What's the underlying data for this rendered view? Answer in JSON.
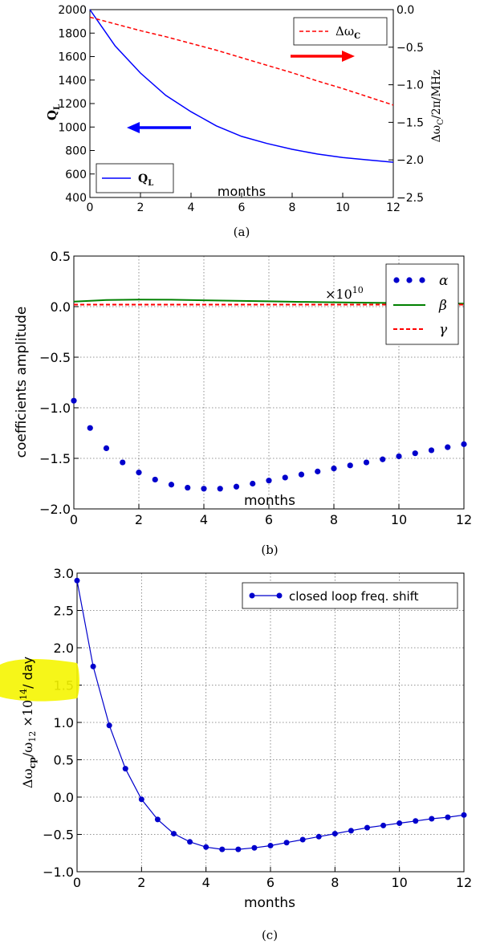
{
  "chart_data": [
    {
      "panel": "(a)",
      "type": "line",
      "xlabel": "months",
      "ylabel_left": "Q_L",
      "ylabel_right": "Δω_C/2π/MHz",
      "x_ticks": [
        "0",
        "2",
        "4",
        "6",
        "8",
        "10",
        "12"
      ],
      "y_ticks_left": [
        "2000",
        "1800",
        "1600",
        "1400",
        "1200",
        "1000",
        "800",
        "600",
        "400"
      ],
      "y_ticks_right": [
        "0.0",
        "−0.5",
        "−1.0",
        "−1.5",
        "−2.0",
        "−2.5"
      ],
      "xlim": [
        0,
        12
      ],
      "ylim_left": [
        400,
        2000
      ],
      "ylim_right": [
        -2.5,
        0.0
      ],
      "grid": false,
      "series": [
        {
          "name": "Q_L",
          "axis": "left",
          "color": "#0000ff",
          "style": "solid",
          "x": [
            0,
            1,
            2,
            3,
            4,
            5,
            6,
            7,
            8,
            9,
            10,
            11,
            12
          ],
          "y": [
            2000,
            1690,
            1460,
            1270,
            1130,
            1010,
            920,
            860,
            810,
            770,
            740,
            720,
            700
          ]
        },
        {
          "name": "Δω_C",
          "axis": "right",
          "color": "#ff0000",
          "style": "dashed",
          "x": [
            0,
            1,
            2,
            3,
            4,
            5,
            6,
            7,
            8,
            9,
            10,
            11,
            12
          ],
          "y": [
            -0.1,
            -0.19,
            -0.28,
            -0.36,
            -0.45,
            -0.54,
            -0.64,
            -0.74,
            -0.84,
            -0.95,
            -1.05,
            -1.16,
            -1.27
          ]
        }
      ],
      "legend_left": "bottom-left",
      "legend_right": "top-right",
      "caption": "(a)"
    },
    {
      "panel": "(b)",
      "type": "line",
      "xlabel": "months",
      "ylabel": "coefficients amplitude",
      "y_multiplier": "×10^10",
      "x_ticks": [
        "0",
        "2",
        "4",
        "6",
        "8",
        "10",
        "12"
      ],
      "y_ticks": [
        "0.5",
        "0.0",
        "−0.5",
        "−1.0",
        "−1.5",
        "−2.0"
      ],
      "xlim": [
        0,
        12
      ],
      "ylim": [
        -2.0,
        0.5
      ],
      "grid": true,
      "series": [
        {
          "name": "α",
          "color": "#0000cc",
          "style": "markers",
          "x": [
            0,
            0.5,
            1,
            1.5,
            2,
            2.5,
            3,
            3.5,
            4,
            4.5,
            5,
            5.5,
            6,
            6.5,
            7,
            7.5,
            8,
            8.5,
            9,
            9.5,
            10,
            10.5,
            11,
            11.5,
            12
          ],
          "y": [
            -0.93,
            -1.2,
            -1.4,
            -1.54,
            -1.64,
            -1.71,
            -1.76,
            -1.79,
            -1.8,
            -1.8,
            -1.78,
            -1.75,
            -1.72,
            -1.69,
            -1.66,
            -1.63,
            -1.6,
            -1.57,
            -1.54,
            -1.51,
            -1.48,
            -1.45,
            -1.42,
            -1.39,
            -1.36
          ]
        },
        {
          "name": "β",
          "color": "#008000",
          "style": "solid",
          "x": [
            0,
            1,
            2,
            3,
            4,
            5,
            6,
            7,
            8,
            9,
            10,
            11,
            12
          ],
          "y": [
            0.05,
            0.065,
            0.07,
            0.068,
            0.063,
            0.058,
            0.052,
            0.047,
            0.043,
            0.039,
            0.036,
            0.033,
            0.03
          ]
        },
        {
          "name": "γ",
          "color": "#ff0000",
          "style": "dashed",
          "x": [
            0,
            12
          ],
          "y": [
            0.02,
            0.02
          ]
        }
      ],
      "legend": "top-right",
      "caption": "(b)"
    },
    {
      "panel": "(c)",
      "type": "line",
      "xlabel": "months",
      "ylabel": "Δω_cp/ω_12 ×10^14 / day",
      "x_ticks": [
        "0",
        "2",
        "4",
        "6",
        "8",
        "10",
        "12"
      ],
      "y_ticks": [
        "3.0",
        "2.5",
        "2.0",
        "1.5",
        "1.0",
        "0.5",
        "0.0",
        "−0.5",
        "−1.0"
      ],
      "xlim": [
        0,
        12
      ],
      "ylim": [
        -1.0,
        3.0
      ],
      "grid": true,
      "series": [
        {
          "name": "closed loop freq. shift",
          "color": "#0000cc",
          "style": "line+markers",
          "x": [
            0,
            0.5,
            1,
            1.5,
            2,
            2.5,
            3,
            3.5,
            4,
            4.5,
            5,
            5.5,
            6,
            6.5,
            7,
            7.5,
            8,
            8.5,
            9,
            9.5,
            10,
            10.5,
            11,
            11.5,
            12
          ],
          "y": [
            2.9,
            1.75,
            0.96,
            0.38,
            -0.03,
            -0.3,
            -0.49,
            -0.6,
            -0.67,
            -0.7,
            -0.7,
            -0.68,
            -0.65,
            -0.61,
            -0.57,
            -0.53,
            -0.49,
            -0.45,
            -0.41,
            -0.38,
            -0.35,
            -0.32,
            -0.29,
            -0.27,
            -0.24
          ]
        }
      ],
      "legend": "top-right",
      "caption": "(c)"
    }
  ],
  "annotations": {
    "highlight_color": "#f5f500",
    "arrow_left_color": "#0000ff",
    "arrow_right_color": "#ff0000"
  }
}
